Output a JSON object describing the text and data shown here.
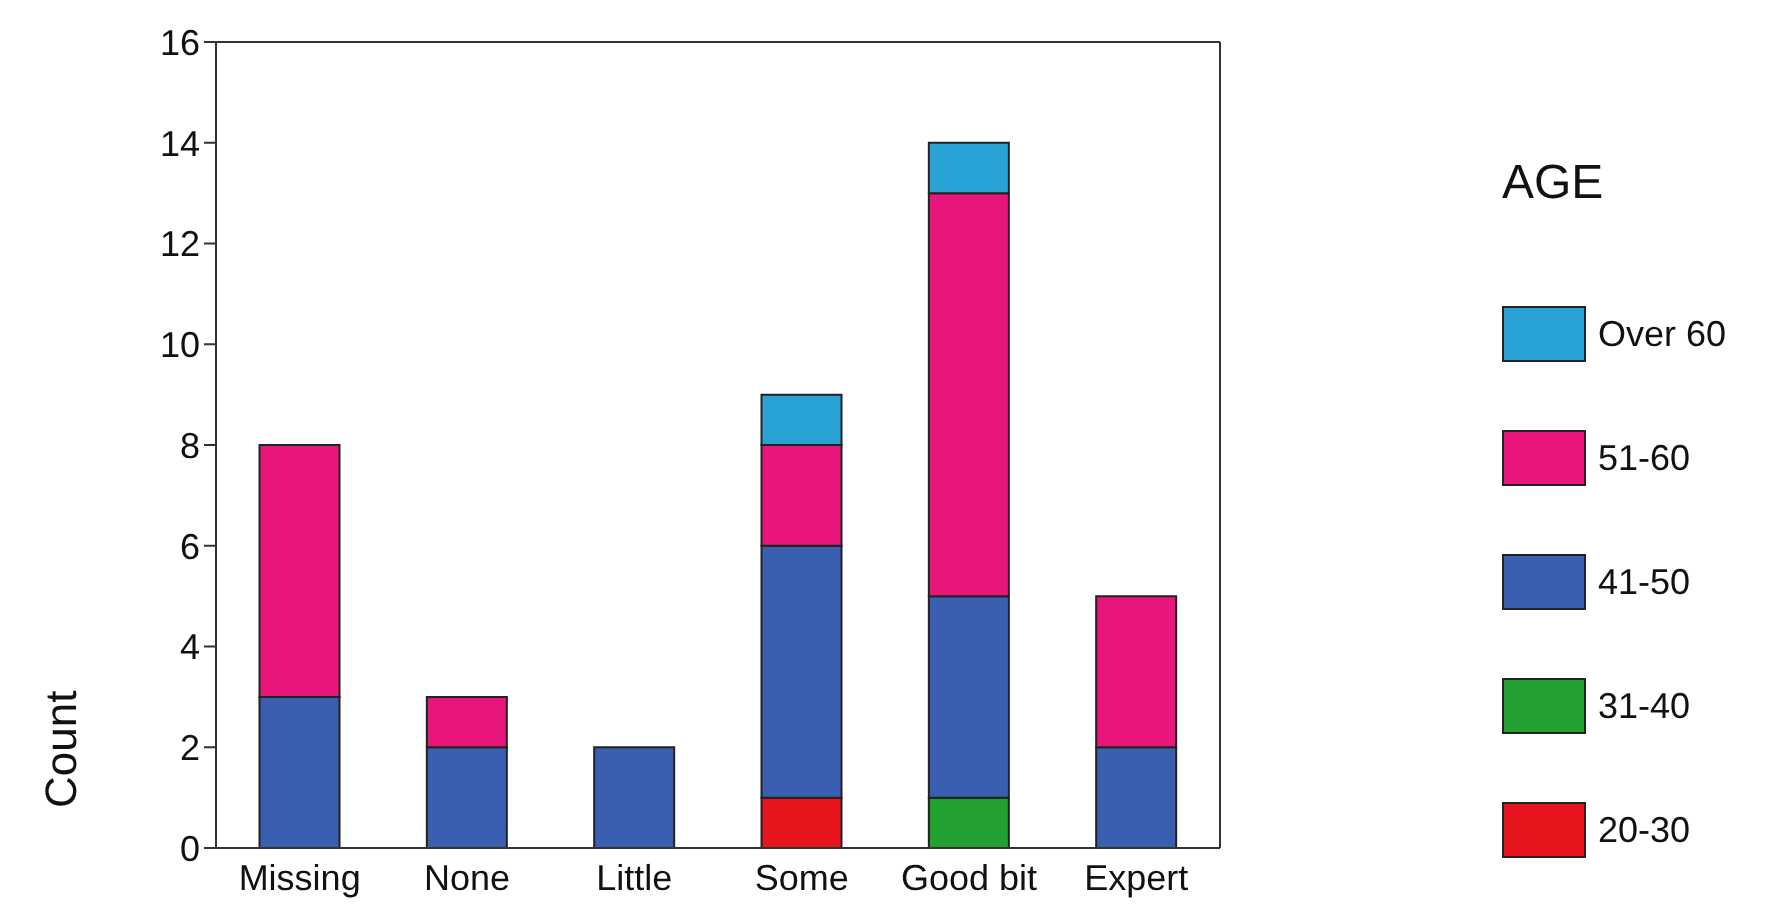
{
  "chart_data": {
    "type": "bar",
    "stacked": true,
    "ylabel": "Count",
    "legend_title": "AGE",
    "legend": "right",
    "categories": [
      "Missing",
      "None",
      "Little",
      "Some",
      "Good bit",
      "Expert"
    ],
    "ylim": [
      0,
      16
    ],
    "yticks": [
      0,
      2,
      4,
      6,
      8,
      10,
      12,
      14,
      16
    ],
    "grid": false,
    "series": [
      {
        "name": "20-30",
        "color": "#e8141e",
        "values": [
          0,
          0,
          0,
          1,
          0,
          0
        ]
      },
      {
        "name": "31-40",
        "color": "#22a030",
        "values": [
          0,
          0,
          0,
          0,
          1,
          0
        ]
      },
      {
        "name": "41-50",
        "color": "#3a5fb0",
        "values": [
          3,
          2,
          2,
          5,
          4,
          2
        ]
      },
      {
        "name": "51-60",
        "color": "#e8157a",
        "values": [
          5,
          1,
          0,
          2,
          8,
          3
        ]
      },
      {
        "name": "Over 60",
        "color": "#29a3d6",
        "values": [
          0,
          0,
          0,
          1,
          1,
          0
        ]
      }
    ]
  }
}
